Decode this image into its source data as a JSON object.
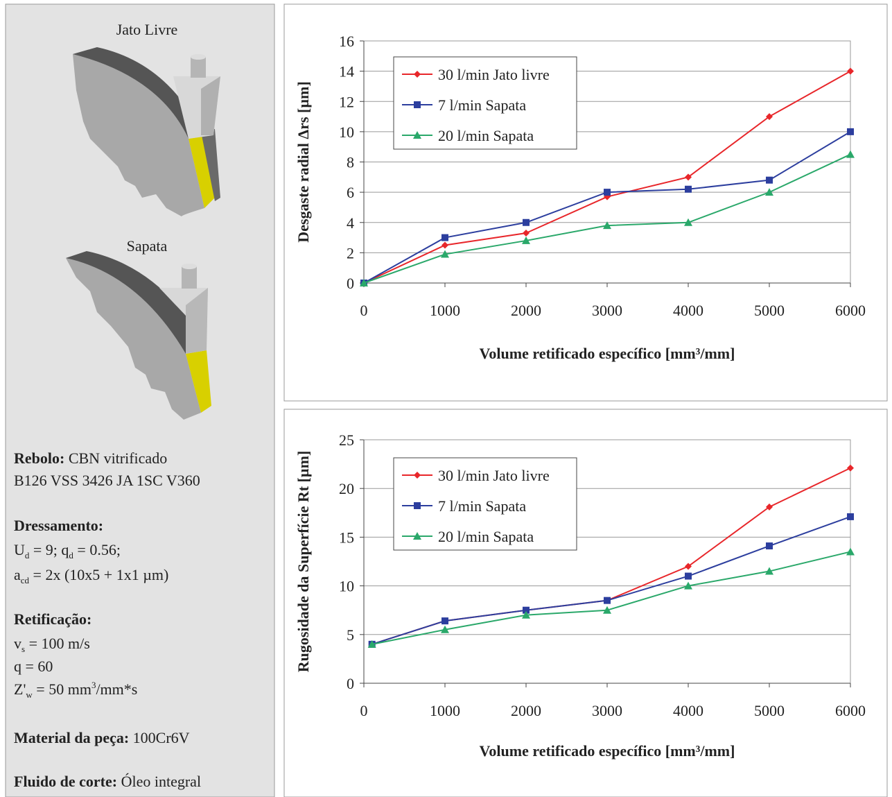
{
  "panel": {
    "images": [
      "Jato Livre",
      "Sapata"
    ],
    "sections": [
      {
        "label": "Rebolo:",
        "inline": [
          {
            "text": "CBN vitrificado"
          }
        ],
        "lines": [
          [
            {
              "text": "B126 VSS 3426 JA 1SC V360"
            }
          ]
        ]
      },
      {
        "label": "Dressamento:",
        "inline": [],
        "lines": [
          [
            {
              "text": "U"
            },
            {
              "sub": "d"
            },
            {
              "text": " = 9; q"
            },
            {
              "sub": "d"
            },
            {
              "text": " = 0.56;"
            }
          ],
          [
            {
              "text": "a"
            },
            {
              "sub": "cd"
            },
            {
              "text": " = 2x (10x5 + 1x1 µm)"
            }
          ]
        ]
      },
      {
        "label": "Retificação:",
        "inline": [],
        "lines": [
          [
            {
              "text": "v"
            },
            {
              "sub": "s"
            },
            {
              "text": " = 100 m/s"
            }
          ],
          [
            {
              "text": "q = 60"
            }
          ],
          [
            {
              "text": "Z'"
            },
            {
              "sub": "w"
            },
            {
              "text": " = 50 mm"
            },
            {
              "sup": "3"
            },
            {
              "text": "/mm*s"
            }
          ]
        ]
      },
      {
        "label": "Material da peça:",
        "inline": [
          {
            "text": "100Cr6V"
          }
        ],
        "lines": []
      },
      {
        "label": "Fluido de corte:",
        "inline": [
          {
            "text": "Óleo integral"
          }
        ],
        "lines": []
      }
    ]
  },
  "chart_data": [
    {
      "type": "line",
      "x_label": "Volume retificado específico [mm³/mm]",
      "y_label": "Desgaste radial Δrs [µm]",
      "x": [
        0,
        1000,
        2000,
        3000,
        4000,
        5000,
        6000
      ],
      "xlim": [
        0,
        6000
      ],
      "xticks": [
        0,
        1000,
        2000,
        3000,
        4000,
        5000,
        6000
      ],
      "ylim": [
        0,
        16
      ],
      "yticks": [
        0,
        2,
        4,
        6,
        8,
        10,
        12,
        14,
        16
      ],
      "grid": true,
      "legend": "upper left",
      "series": [
        {
          "name": "30 l/min Jato livre",
          "color": "#e8262a",
          "marker": "diamond",
          "values": [
            0,
            2.5,
            3.3,
            5.7,
            7,
            11,
            14
          ]
        },
        {
          "name": "7 l/min Sapata",
          "color": "#2c3e9e",
          "marker": "square",
          "values": [
            0,
            3,
            4,
            6,
            6.2,
            6.8,
            10
          ]
        },
        {
          "name": "20 l/min Sapata",
          "color": "#2aa86a",
          "marker": "triangle",
          "values": [
            0,
            1.9,
            2.8,
            3.8,
            4,
            6,
            8.5
          ]
        }
      ]
    },
    {
      "type": "line",
      "x_label": "Volume retificado específico [mm³/mm]",
      "y_label": "Rugosidade da Superfície Rt [µm]",
      "x": [
        100,
        1000,
        2000,
        3000,
        4000,
        5000,
        6000
      ],
      "xlim": [
        0,
        6000
      ],
      "xticks": [
        0,
        1000,
        2000,
        3000,
        4000,
        5000,
        6000
      ],
      "ylim": [
        0,
        25
      ],
      "yticks": [
        0,
        5,
        10,
        15,
        20,
        25
      ],
      "grid": true,
      "legend": "upper left",
      "series": [
        {
          "name": "30 l/min Jato livre",
          "color": "#e8262a",
          "marker": "diamond",
          "values": [
            4,
            6.4,
            7.5,
            8.5,
            12,
            18.1,
            22.1
          ]
        },
        {
          "name": "7 l/min Sapata",
          "color": "#2c3e9e",
          "marker": "square",
          "values": [
            4,
            6.4,
            7.5,
            8.5,
            11,
            14.1,
            17.1
          ]
        },
        {
          "name": "20 l/min Sapata",
          "color": "#2aa86a",
          "marker": "triangle",
          "values": [
            4,
            5.5,
            7,
            7.5,
            10,
            11.5,
            13.5
          ]
        }
      ]
    }
  ]
}
